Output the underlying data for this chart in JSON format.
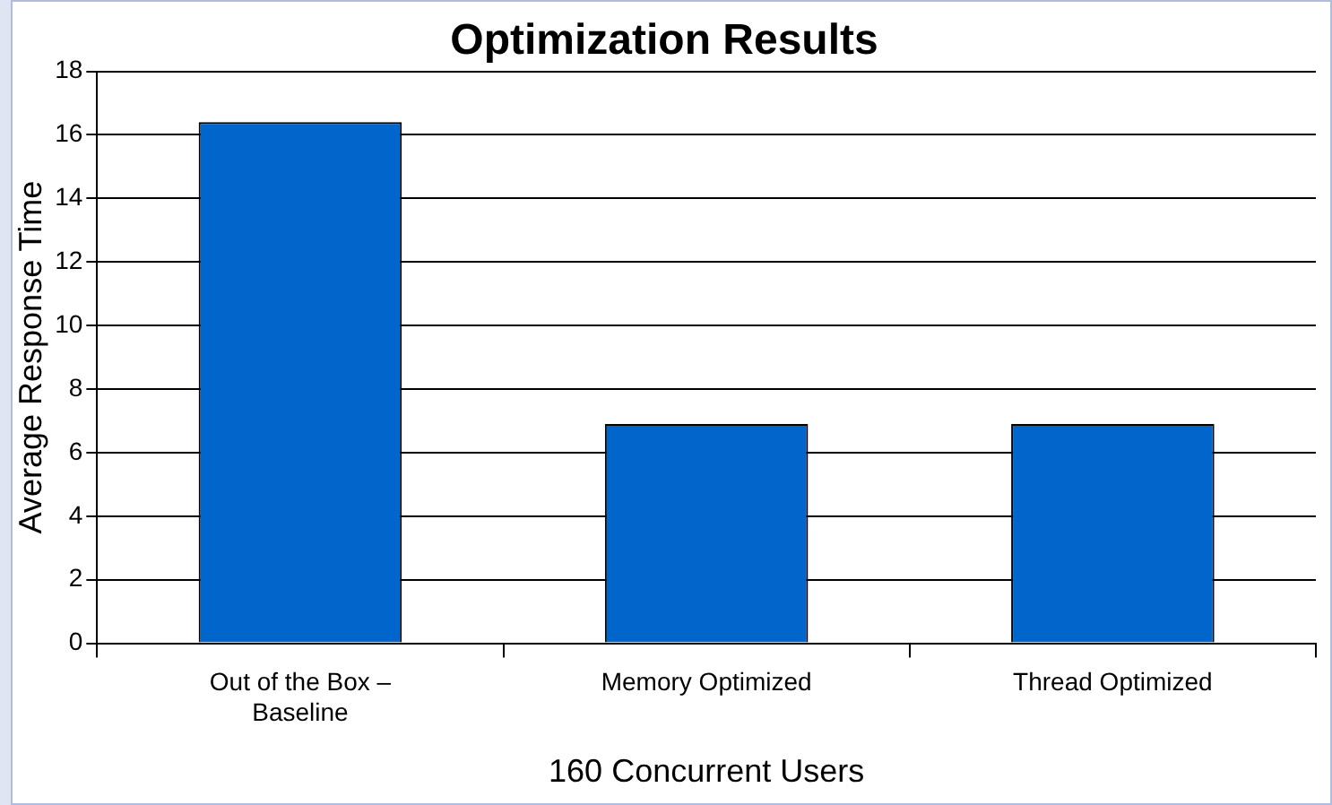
{
  "chart_data": {
    "type": "bar",
    "title": "Optimization Results",
    "xlabel": "160 Concurrent Users",
    "ylabel": "Average Response Time",
    "categories": [
      "Out of the Box – Baseline",
      "Memory Optimized",
      "Thread Optimized"
    ],
    "values": [
      16.4,
      6.9,
      6.9
    ],
    "color": "#0066cc",
    "ylim": [
      0,
      18
    ],
    "yticks": [
      0,
      2,
      4,
      6,
      8,
      10,
      12,
      14,
      16,
      18
    ],
    "grid": "y",
    "legend": false
  }
}
